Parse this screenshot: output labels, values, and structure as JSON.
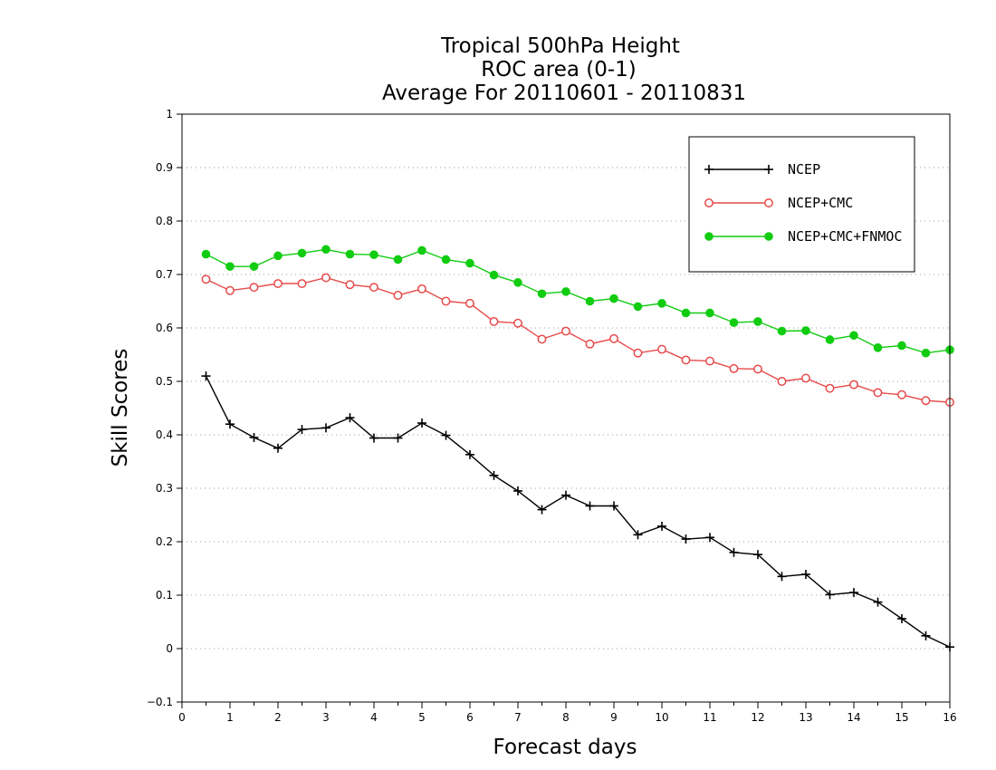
{
  "chart_data": {
    "type": "line",
    "title": [
      "Tropical 500hPa Height",
      "ROC area (0-1)",
      "Average For 20110601 - 20110831"
    ],
    "xlabel": "Forecast days",
    "ylabel": "Skill Scores",
    "xlim": [
      0,
      16
    ],
    "ylim": [
      -0.1,
      1
    ],
    "xticks": [
      0,
      1,
      2,
      3,
      4,
      5,
      6,
      7,
      8,
      9,
      10,
      11,
      12,
      13,
      14,
      15,
      16
    ],
    "yticks": [
      -0.1,
      0,
      0.1,
      0.2,
      0.3,
      0.4,
      0.5,
      0.6,
      0.7,
      0.8,
      0.9,
      1
    ],
    "ytick_labels": [
      "−0.1",
      "0",
      "0.1",
      "0.2",
      "0.3",
      "0.4",
      "0.5",
      "0.6",
      "0.7",
      "0.8",
      "0.9",
      "1"
    ],
    "grid": "horizontal dotted",
    "legend_position": "top-right",
    "x": [
      0.5,
      1,
      1.5,
      2,
      2.5,
      3,
      3.5,
      4,
      4.5,
      5,
      5.5,
      6,
      6.5,
      7,
      7.5,
      8,
      8.5,
      9,
      9.5,
      10,
      10.5,
      11,
      11.5,
      12,
      12.5,
      13,
      13.5,
      14,
      14.5,
      15,
      15.5,
      16
    ],
    "series": [
      {
        "name": "NCEP",
        "color": "#000000",
        "marker": "plus",
        "values": [
          0.51,
          0.42,
          0.395,
          0.375,
          0.41,
          0.413,
          0.432,
          0.394,
          0.394,
          0.422,
          0.399,
          0.363,
          0.324,
          0.295,
          0.26,
          0.287,
          0.267,
          0.267,
          0.213,
          0.229,
          0.205,
          0.208,
          0.18,
          0.176,
          0.135,
          0.139,
          0.101,
          0.105,
          0.087,
          0.056,
          0.024,
          0.003
        ]
      },
      {
        "name": "NCEP+CMC",
        "color": "#e84a4a",
        "marker": "open-circle",
        "values": [
          0.691,
          0.67,
          0.676,
          0.683,
          0.683,
          0.694,
          0.681,
          0.676,
          0.661,
          0.673,
          0.65,
          0.646,
          0.612,
          0.609,
          0.579,
          0.594,
          0.57,
          0.58,
          0.553,
          0.56,
          0.54,
          0.538,
          0.524,
          0.523,
          0.5,
          0.506,
          0.487,
          0.494,
          0.479,
          0.475,
          0.464,
          0.461
        ]
      },
      {
        "name": "NCEP+CMC+FNMOC",
        "color": "#11cc11",
        "marker": "filled-circle",
        "values": [
          0.738,
          0.715,
          0.715,
          0.735,
          0.74,
          0.747,
          0.738,
          0.737,
          0.728,
          0.745,
          0.728,
          0.721,
          0.699,
          0.685,
          0.664,
          0.668,
          0.65,
          0.655,
          0.64,
          0.646,
          0.628,
          0.628,
          0.61,
          0.612,
          0.594,
          0.595,
          0.578,
          0.586,
          0.563,
          0.567,
          0.553,
          0.559
        ]
      }
    ]
  }
}
